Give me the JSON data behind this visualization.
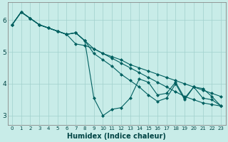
{
  "xlabel": "Humidex (Indice chaleur)",
  "background_color": "#c8ece8",
  "grid_color": "#a0d0cc",
  "line_color": "#006060",
  "xlim": [
    -0.5,
    23.5
  ],
  "ylim": [
    2.7,
    6.55
  ],
  "yticks": [
    3,
    4,
    5,
    6
  ],
  "xtick_labels": [
    "0",
    "1",
    "2",
    "3",
    "4",
    "5",
    "6",
    "7",
    "8",
    "9",
    "10",
    "11",
    "12",
    "13",
    "14",
    "15",
    "16",
    "17",
    "18",
    "19",
    "20",
    "21",
    "22",
    "23"
  ],
  "series": [
    [
      5.85,
      6.25,
      6.05,
      5.85,
      5.75,
      5.65,
      5.55,
      5.6,
      5.35,
      3.55,
      3.0,
      3.2,
      3.25,
      3.55,
      4.15,
      4.05,
      3.65,
      3.7,
      4.05,
      3.55,
      3.9,
      3.55,
      3.5,
      3.3
    ],
    [
      5.85,
      6.25,
      6.05,
      5.85,
      5.75,
      5.65,
      5.55,
      5.25,
      5.2,
      5.1,
      4.95,
      4.85,
      4.75,
      4.6,
      4.5,
      4.4,
      4.3,
      4.2,
      4.1,
      4.0,
      3.9,
      3.8,
      3.7,
      3.6
    ],
    [
      5.85,
      6.25,
      6.05,
      5.85,
      5.75,
      5.65,
      5.55,
      5.6,
      5.35,
      5.1,
      4.95,
      4.8,
      4.65,
      4.5,
      4.35,
      4.2,
      4.05,
      3.9,
      3.75,
      3.6,
      3.5,
      3.4,
      3.35,
      3.3
    ],
    [
      5.85,
      6.25,
      6.05,
      5.85,
      5.75,
      5.65,
      5.55,
      5.6,
      5.35,
      4.95,
      4.75,
      4.55,
      4.3,
      4.1,
      3.9,
      3.65,
      3.45,
      3.55,
      4.0,
      3.5,
      3.9,
      3.85,
      3.6,
      3.3
    ]
  ],
  "figsize": [
    3.2,
    2.0
  ],
  "dpi": 100
}
